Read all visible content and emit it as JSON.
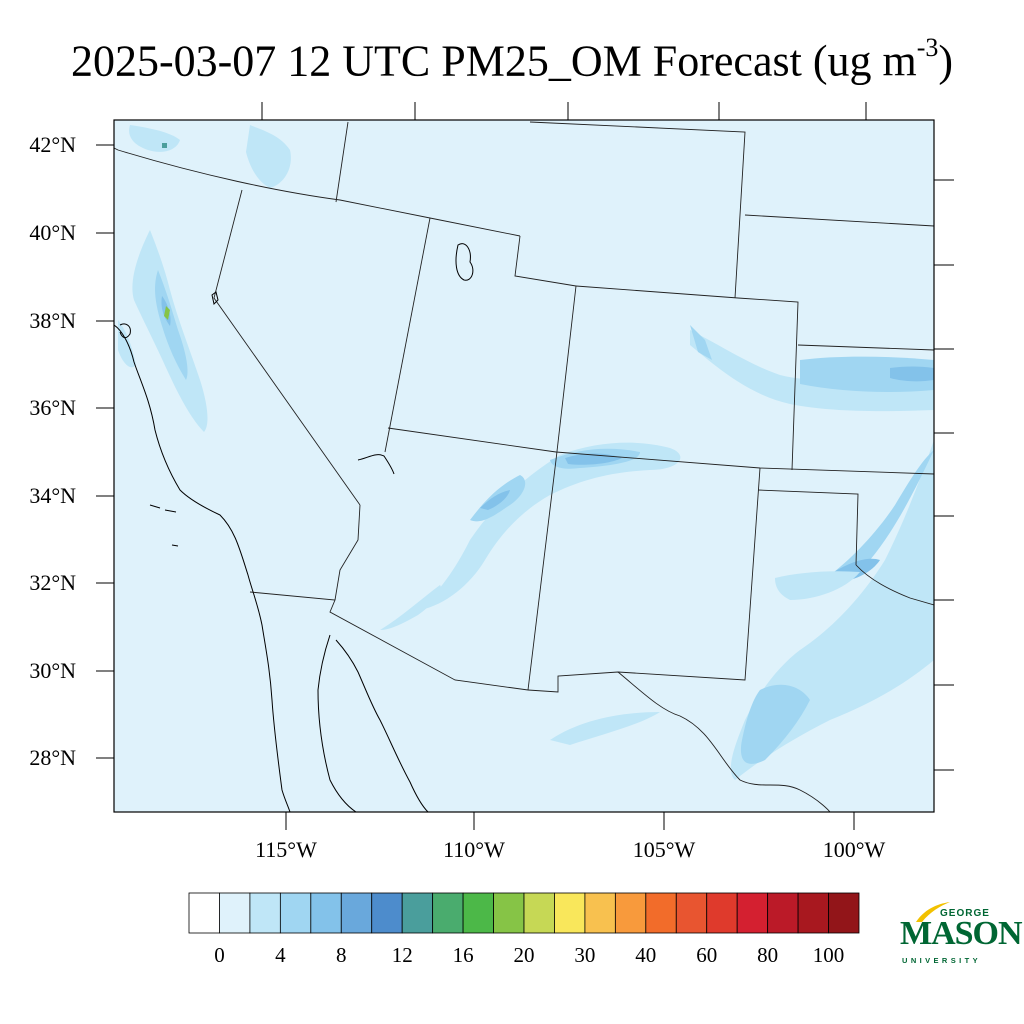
{
  "title": {
    "main": "2025-03-07 12 UTC PM25_OM Forecast (ug m",
    "sup": "-3",
    "close": ")"
  },
  "map": {
    "lat_labels": [
      "42°N",
      "40°N",
      "38°N",
      "36°N",
      "34°N",
      "32°N",
      "30°N",
      "28°N"
    ],
    "lon_labels": [
      "115°W",
      "110°W",
      "105°W",
      "100°W"
    ],
    "background_color": "#dff2fb"
  },
  "colorbar": {
    "colors": [
      "#ffffff",
      "#dff2fb",
      "#bfe6f7",
      "#a0d6f2",
      "#83c2ea",
      "#69a8dc",
      "#4d8ccc",
      "#4a9e9c",
      "#4aac6e",
      "#4cb848",
      "#86c446",
      "#c6d855",
      "#f9e75b",
      "#f8c14f",
      "#f89a3c",
      "#f26c2a",
      "#e85530",
      "#df3a2c",
      "#d42030",
      "#bb1a28",
      "#a8181f",
      "#921519"
    ],
    "labels": [
      "0",
      "4",
      "8",
      "12",
      "16",
      "20",
      "30",
      "40",
      "60",
      "80",
      "100"
    ]
  },
  "logo": {
    "line1": "GEORGE",
    "line2": "MASON",
    "line3": "UNIVERSITY",
    "color": "#006633",
    "accent": "#f2c100"
  }
}
